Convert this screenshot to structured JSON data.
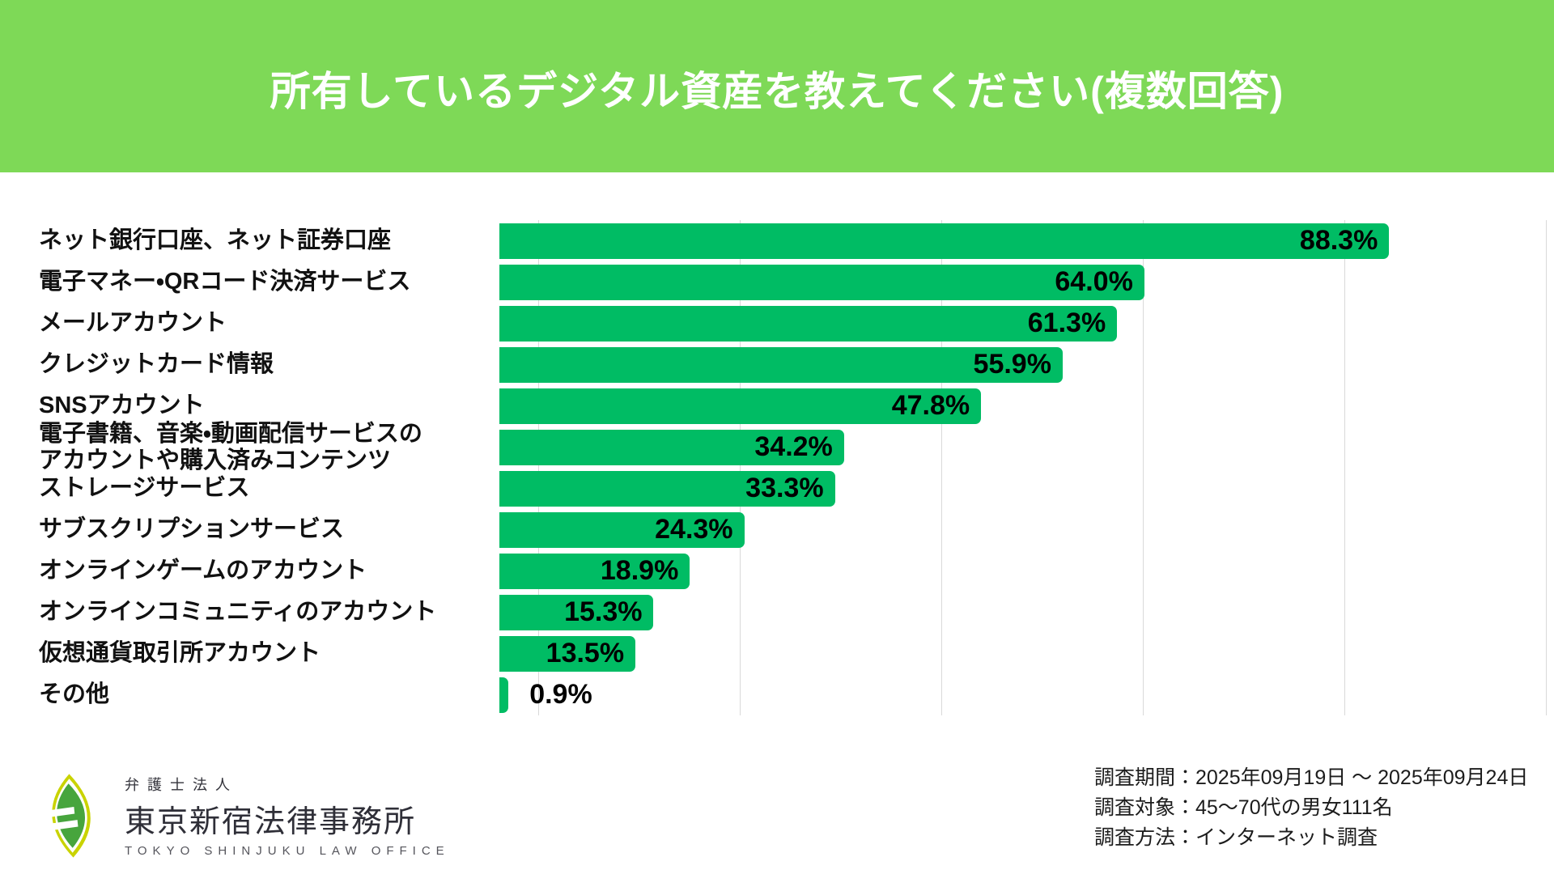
{
  "header": {
    "title": "所有しているデジタル資産を教えてください(複数回答)",
    "background_color": "#7ed957",
    "text_color": "#ffffff"
  },
  "chart_data": {
    "type": "bar",
    "orientation": "horizontal",
    "title": "所有しているデジタル資産を教えてください(複数回答)",
    "categories": [
      "ネット銀行口座、ネット証券口座",
      "電子マネー・QRコード決済サービス",
      "メールアカウント",
      "クレジットカード情報",
      "SNSアカウント",
      "電子書籍、音楽・動画配信サービスの\nアカウントや購入済みコンテンツ",
      "ストレージサービス",
      "サブスクリプションサービス",
      "オンラインゲームのアカウント",
      "オンラインコミュニティのアカウント",
      "仮想通貨取引所アカウント",
      "その他"
    ],
    "values": [
      88.3,
      64.0,
      61.3,
      55.9,
      47.8,
      34.2,
      33.3,
      24.3,
      18.9,
      15.3,
      13.5,
      0.9
    ],
    "value_labels": [
      "88.3%",
      "64.0%",
      "61.3%",
      "55.9%",
      "47.8%",
      "34.2%",
      "33.3%",
      "24.3%",
      "18.9%",
      "15.3%",
      "13.5%",
      "0.9%"
    ],
    "xlim": [
      0,
      100
    ],
    "gridlines_percent": [
      0,
      20,
      40,
      60,
      80,
      100
    ],
    "grid": true,
    "legend": false,
    "bar_color": "#00bc64",
    "gridline_color": "#d9d9d9"
  },
  "footer": {
    "logo": {
      "firm_type": "弁護士法人",
      "firm_name": "東京新宿法律事務所",
      "firm_name_en": "TOKYO SHINJUKU LAW OFFICE",
      "logo_green": "#47a53d",
      "logo_yellow": "#c9d300"
    },
    "survey": {
      "period": "調査期間：2025年09月19日 ～ 2025年09月24日",
      "subjects": "調査対象：45〜70代の男女111名",
      "method": "調査方法：インターネット調査"
    }
  }
}
